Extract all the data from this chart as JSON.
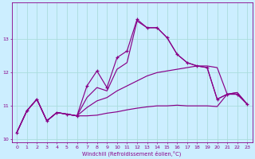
{
  "xlabel": "Windchill (Refroidissement éolien,°C)",
  "bg_color": "#cceeff",
  "grid_color": "#aadddd",
  "line_color": "#880088",
  "x": [
    0,
    1,
    2,
    3,
    4,
    5,
    6,
    7,
    8,
    9,
    10,
    11,
    12,
    13,
    14,
    15,
    16,
    17,
    18,
    19,
    20,
    21,
    22,
    23
  ],
  "line1": [
    10.2,
    10.85,
    11.2,
    10.55,
    10.8,
    10.75,
    10.7,
    11.6,
    12.05,
    11.55,
    12.45,
    12.65,
    13.6,
    13.35,
    13.35,
    13.05,
    12.55,
    12.3,
    12.2,
    12.15,
    11.2,
    11.35,
    11.35,
    11.05
  ],
  "line2": [
    10.2,
    10.85,
    11.2,
    10.55,
    10.8,
    10.75,
    10.7,
    11.25,
    11.55,
    11.45,
    12.1,
    12.3,
    13.55,
    13.35,
    13.35,
    13.05,
    12.55,
    12.3,
    12.2,
    12.15,
    11.2,
    11.35,
    11.35,
    11.05
  ],
  "line3": [
    10.2,
    10.85,
    11.2,
    10.55,
    10.8,
    10.75,
    10.7,
    10.95,
    11.15,
    11.25,
    11.45,
    11.6,
    11.75,
    11.9,
    12.0,
    12.05,
    12.1,
    12.15,
    12.2,
    12.2,
    12.15,
    11.35,
    11.4,
    11.05
  ],
  "line4": [
    10.2,
    10.85,
    11.2,
    10.55,
    10.8,
    10.75,
    10.7,
    10.7,
    10.72,
    10.78,
    10.82,
    10.88,
    10.93,
    10.97,
    11.0,
    11.0,
    11.02,
    11.0,
    11.0,
    11.0,
    10.98,
    11.35,
    11.4,
    11.05
  ],
  "ylim": [
    9.9,
    14.1
  ],
  "yticks": [
    10,
    11,
    12,
    13
  ],
  "xticks": [
    0,
    1,
    2,
    3,
    4,
    5,
    6,
    7,
    8,
    9,
    10,
    11,
    12,
    13,
    14,
    15,
    16,
    17,
    18,
    19,
    20,
    21,
    22,
    23
  ]
}
